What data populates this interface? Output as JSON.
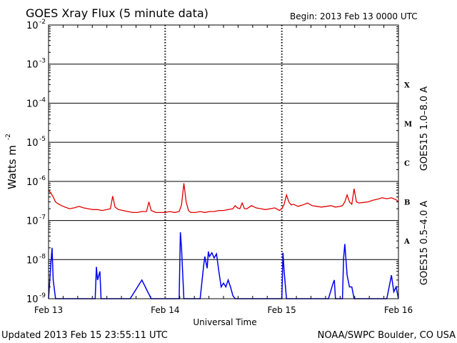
{
  "chart_data": {
    "type": "line",
    "title": "GOES Xray Flux (5 minute data)",
    "begin_label": "Begin:  2013 Feb 13 0000 UTC",
    "xlabel": "Universal Time",
    "ylabel": "Watts m",
    "ylabel_exponent": "-2",
    "y_scale": "log",
    "ylim": [
      1e-09,
      0.01
    ],
    "y_ticks": [
      {
        "base": "10",
        "exp": "-2",
        "value": 0.01
      },
      {
        "base": "10",
        "exp": "-3",
        "value": 0.001
      },
      {
        "base": "10",
        "exp": "-4",
        "value": 0.0001
      },
      {
        "base": "10",
        "exp": "-5",
        "value": 1e-05
      },
      {
        "base": "10",
        "exp": "-6",
        "value": 1e-06
      },
      {
        "base": "10",
        "exp": "-7",
        "value": 1e-07
      },
      {
        "base": "10",
        "exp": "-8",
        "value": 1e-08
      },
      {
        "base": "10",
        "exp": "-9",
        "value": 1e-09
      }
    ],
    "x_unit": "days since 2013 Feb 13 0000 UTC",
    "xlim": [
      0,
      3
    ],
    "x_ticks": [
      {
        "label": "Feb 13",
        "value": 0
      },
      {
        "label": "Feb 14",
        "value": 1
      },
      {
        "label": "Feb 15",
        "value": 2
      },
      {
        "label": "Feb 16",
        "value": 3
      }
    ],
    "grid": true,
    "flare_classes": [
      {
        "label": "X",
        "value": 0.0003
      },
      {
        "label": "M",
        "value": 3e-05
      },
      {
        "label": "C",
        "value": 3e-06
      },
      {
        "label": "B",
        "value": 3e-07
      },
      {
        "label": "A",
        "value": 3e-08
      }
    ],
    "series": [
      {
        "name": "GOES15 1.0–8.0 A",
        "color": "#e00000",
        "x": [
          0,
          0.02,
          0.04,
          0.06,
          0.08,
          0.1,
          0.14,
          0.18,
          0.22,
          0.26,
          0.3,
          0.34,
          0.38,
          0.42,
          0.46,
          0.5,
          0.53,
          0.55,
          0.57,
          0.6,
          0.64,
          0.68,
          0.72,
          0.76,
          0.8,
          0.84,
          0.86,
          0.88,
          0.9,
          0.92,
          0.96,
          1,
          1.04,
          1.08,
          1.12,
          1.14,
          1.16,
          1.18,
          1.2,
          1.22,
          1.26,
          1.3,
          1.34,
          1.38,
          1.42,
          1.46,
          1.5,
          1.54,
          1.58,
          1.6,
          1.62,
          1.64,
          1.66,
          1.68,
          1.7,
          1.74,
          1.78,
          1.82,
          1.86,
          1.9,
          1.94,
          1.98,
          2,
          2.02,
          2.04,
          2.06,
          2.08,
          2.1,
          2.14,
          2.18,
          2.22,
          2.26,
          2.3,
          2.34,
          2.38,
          2.42,
          2.46,
          2.5,
          2.52,
          2.54,
          2.56,
          2.58,
          2.6,
          2.62,
          2.64,
          2.66,
          2.7,
          2.74,
          2.78,
          2.82,
          2.86,
          2.9,
          2.94,
          2.98,
          3
        ],
        "values": [
          6e-07,
          5e-07,
          4e-07,
          3e-07,
          2.7e-07,
          2.5e-07,
          2.2e-07,
          2e-07,
          2.1e-07,
          2.3e-07,
          2.1e-07,
          2e-07,
          1.9e-07,
          1.9e-07,
          1.8e-07,
          1.9e-07,
          2e-07,
          4.2e-07,
          2.2e-07,
          1.9e-07,
          1.8e-07,
          1.7e-07,
          1.6e-07,
          1.6e-07,
          1.7e-07,
          1.7e-07,
          3e-07,
          1.8e-07,
          1.7e-07,
          1.6e-07,
          1.6e-07,
          1.6e-07,
          1.7e-07,
          1.6e-07,
          1.7e-07,
          2.5e-07,
          9e-07,
          3e-07,
          1.8e-07,
          1.6e-07,
          1.6e-07,
          1.7e-07,
          1.6e-07,
          1.7e-07,
          1.7e-07,
          1.8e-07,
          1.8e-07,
          1.9e-07,
          2e-07,
          2.4e-07,
          2.1e-07,
          2e-07,
          2.8e-07,
          2e-07,
          2e-07,
          2.4e-07,
          2.1e-07,
          2e-07,
          1.9e-07,
          2e-07,
          2.1e-07,
          1.8e-07,
          2e-07,
          2.6e-07,
          4.5e-07,
          3e-07,
          2.5e-07,
          2.6e-07,
          2.3e-07,
          2.5e-07,
          2.8e-07,
          2.4e-07,
          2.3e-07,
          2.2e-07,
          2.3e-07,
          2.4e-07,
          2.2e-07,
          2.3e-07,
          2.4e-07,
          3e-07,
          4.5e-07,
          3e-07,
          2.6e-07,
          6.5e-07,
          3e-07,
          2.8e-07,
          2.9e-07,
          3e-07,
          3.3e-07,
          3.5e-07,
          3.8e-07,
          3.6e-07,
          3.8e-07,
          3.4e-07,
          3e-07
        ]
      },
      {
        "name": "GOES15 0.5–4.0 A",
        "color": "#0000ee",
        "x": [
          0,
          0.02,
          0.03,
          0.04,
          0.06,
          0.2,
          0.4,
          0.41,
          0.42,
          0.44,
          0.45,
          0.46,
          0.48,
          0.6,
          0.7,
          0.8,
          0.88,
          0.9,
          1,
          1.1,
          1.12,
          1.13,
          1.14,
          1.16,
          1.2,
          1.3,
          1.33,
          1.34,
          1.36,
          1.37,
          1.38,
          1.4,
          1.42,
          1.44,
          1.46,
          1.48,
          1.5,
          1.52,
          1.54,
          1.56,
          1.58,
          1.6,
          1.62,
          1.64,
          1.66,
          1.7,
          1.8,
          1.9,
          2,
          2.01,
          2.02,
          2.04,
          2.1,
          2.2,
          2.3,
          2.4,
          2.44,
          2.45,
          2.46,
          2.5,
          2.52,
          2.53,
          2.54,
          2.56,
          2.58,
          2.6,
          2.62,
          2.64,
          2.7,
          2.8,
          2.9,
          2.94,
          2.96,
          2.98,
          3
        ],
        "values": [
          1e-09,
          8e-09,
          2e-08,
          3e-09,
          1e-09,
          1e-09,
          1e-09,
          6.5e-09,
          3e-09,
          5e-09,
          1e-09,
          1e-09,
          1e-09,
          1e-09,
          1e-09,
          3e-09,
          1e-09,
          1e-09,
          1e-09,
          1e-09,
          1e-09,
          5e-08,
          2e-08,
          1e-09,
          1e-09,
          1e-09,
          7e-09,
          1.2e-08,
          6e-09,
          1.6e-08,
          1.2e-08,
          1.5e-08,
          1.1e-08,
          1.4e-08,
          5e-09,
          2e-09,
          2.5e-09,
          2e-09,
          3e-09,
          2e-09,
          1.2e-09,
          1e-09,
          1e-09,
          1e-09,
          1e-09,
          1e-09,
          1e-09,
          1e-09,
          1e-09,
          1.5e-08,
          5e-09,
          1e-09,
          1e-09,
          1e-09,
          1e-09,
          1e-09,
          2.5e-09,
          3e-09,
          1e-09,
          1e-09,
          1e-09,
          1.1e-08,
          2.5e-08,
          4e-09,
          2e-09,
          2e-09,
          1e-09,
          1e-09,
          1e-09,
          1e-09,
          1e-09,
          4e-09,
          1.5e-09,
          2e-09,
          1e-09
        ]
      }
    ]
  },
  "footer": {
    "updated": "Updated 2013 Feb 15 23:55:11 UTC",
    "credit": "NOAA/SWPC Boulder, CO USA"
  }
}
